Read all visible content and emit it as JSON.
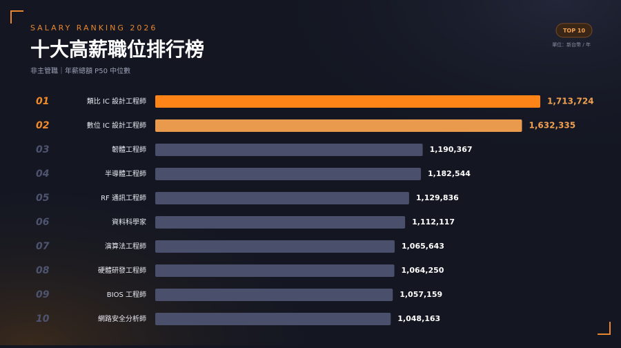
{
  "chart_data": {
    "type": "hbar",
    "kicker": "SALARY RANKING 2026",
    "title": "十大高薪職位排行榜",
    "subtitle": "非主管職｜年薪總額 P50 中位數",
    "badge": "TOP 10",
    "unit": "單位：新台幣 / 年",
    "ranks": [
      "01",
      "02",
      "03",
      "04",
      "05",
      "06",
      "07",
      "08",
      "09",
      "10"
    ],
    "categories": [
      "類比 IC 設計工程師",
      "數位 IC 設計工程師",
      "韌體工程師",
      "半導體工程師",
      "RF 通訊工程師",
      "資料科學家",
      "演算法工程師",
      "硬體研發工程師",
      "BIOS 工程師",
      "網路安全分析師"
    ],
    "values": [
      1713724,
      1632335,
      1190367,
      1182544,
      1129836,
      1112117,
      1065643,
      1064250,
      1057159,
      1048163
    ],
    "value_labels": [
      "1,713,724",
      "1,632,335",
      "1,190,367",
      "1,182,544",
      "1,129,836",
      "1,112,117",
      "1,065,643",
      "1,064,250",
      "1,057,159",
      "1,048,163"
    ],
    "colors": [
      "#ff8418",
      "#e99a4c",
      "#4a4f6c",
      "#4a4f6c",
      "#4a4f6c",
      "#4a4f6c",
      "#4a4f6c",
      "#4a4f6c",
      "#4a4f6c",
      "#4a4f6c"
    ]
  }
}
